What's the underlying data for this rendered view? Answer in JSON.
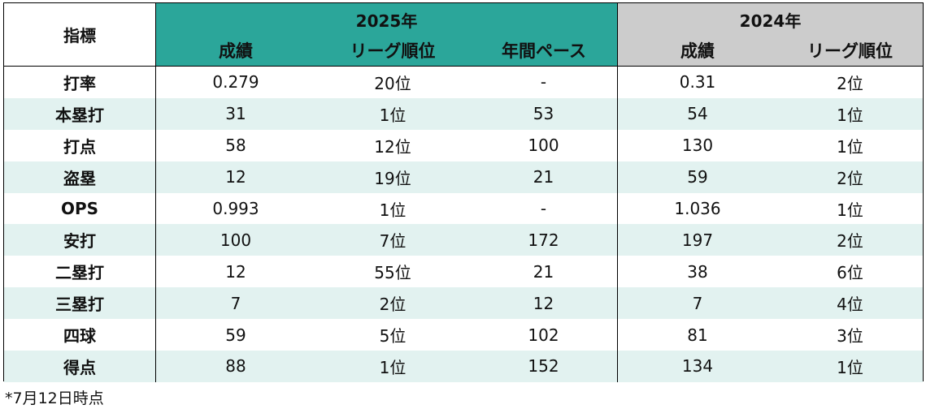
{
  "header": {
    "metric_label": "指標",
    "group_2025": "2025年",
    "group_2024": "2024年",
    "col_2025_stat": "成績",
    "col_2025_rank": "リーグ順位",
    "col_2025_pace": "年間ペース",
    "col_2024_stat": "成績",
    "col_2024_rank": "リーグ順位"
  },
  "rows": [
    {
      "metric": "打率",
      "s25": "0.279",
      "r25": "20位",
      "p25": "-",
      "s24": "0.31",
      "r24": "2位"
    },
    {
      "metric": "本塁打",
      "s25": "31",
      "r25": "1位",
      "p25": "53",
      "s24": "54",
      "r24": "1位"
    },
    {
      "metric": "打点",
      "s25": "58",
      "r25": "12位",
      "p25": "100",
      "s24": "130",
      "r24": "1位"
    },
    {
      "metric": "盗塁",
      "s25": "12",
      "r25": "19位",
      "p25": "21",
      "s24": "59",
      "r24": "2位"
    },
    {
      "metric": "OPS",
      "s25": "0.993",
      "r25": "1位",
      "p25": "-",
      "s24": "1.036",
      "r24": "1位"
    },
    {
      "metric": "安打",
      "s25": "100",
      "r25": "7位",
      "p25": "172",
      "s24": "197",
      "r24": "2位"
    },
    {
      "metric": "二塁打",
      "s25": "12",
      "r25": "55位",
      "p25": "21",
      "s24": "38",
      "r24": "6位"
    },
    {
      "metric": "三塁打",
      "s25": "7",
      "r25": "2位",
      "p25": "12",
      "s24": "7",
      "r24": "4位"
    },
    {
      "metric": "四球",
      "s25": "59",
      "r25": "5位",
      "p25": "102",
      "s24": "81",
      "r24": "3位"
    },
    {
      "metric": "得点",
      "s25": "88",
      "r25": "1位",
      "p25": "152",
      "s24": "134",
      "r24": "1位"
    }
  ],
  "footnote": "*7月12日時点",
  "colors": {
    "header_2025": "#2ba69a",
    "header_2024": "#cccccc",
    "stripe": "#e2f2f0"
  }
}
